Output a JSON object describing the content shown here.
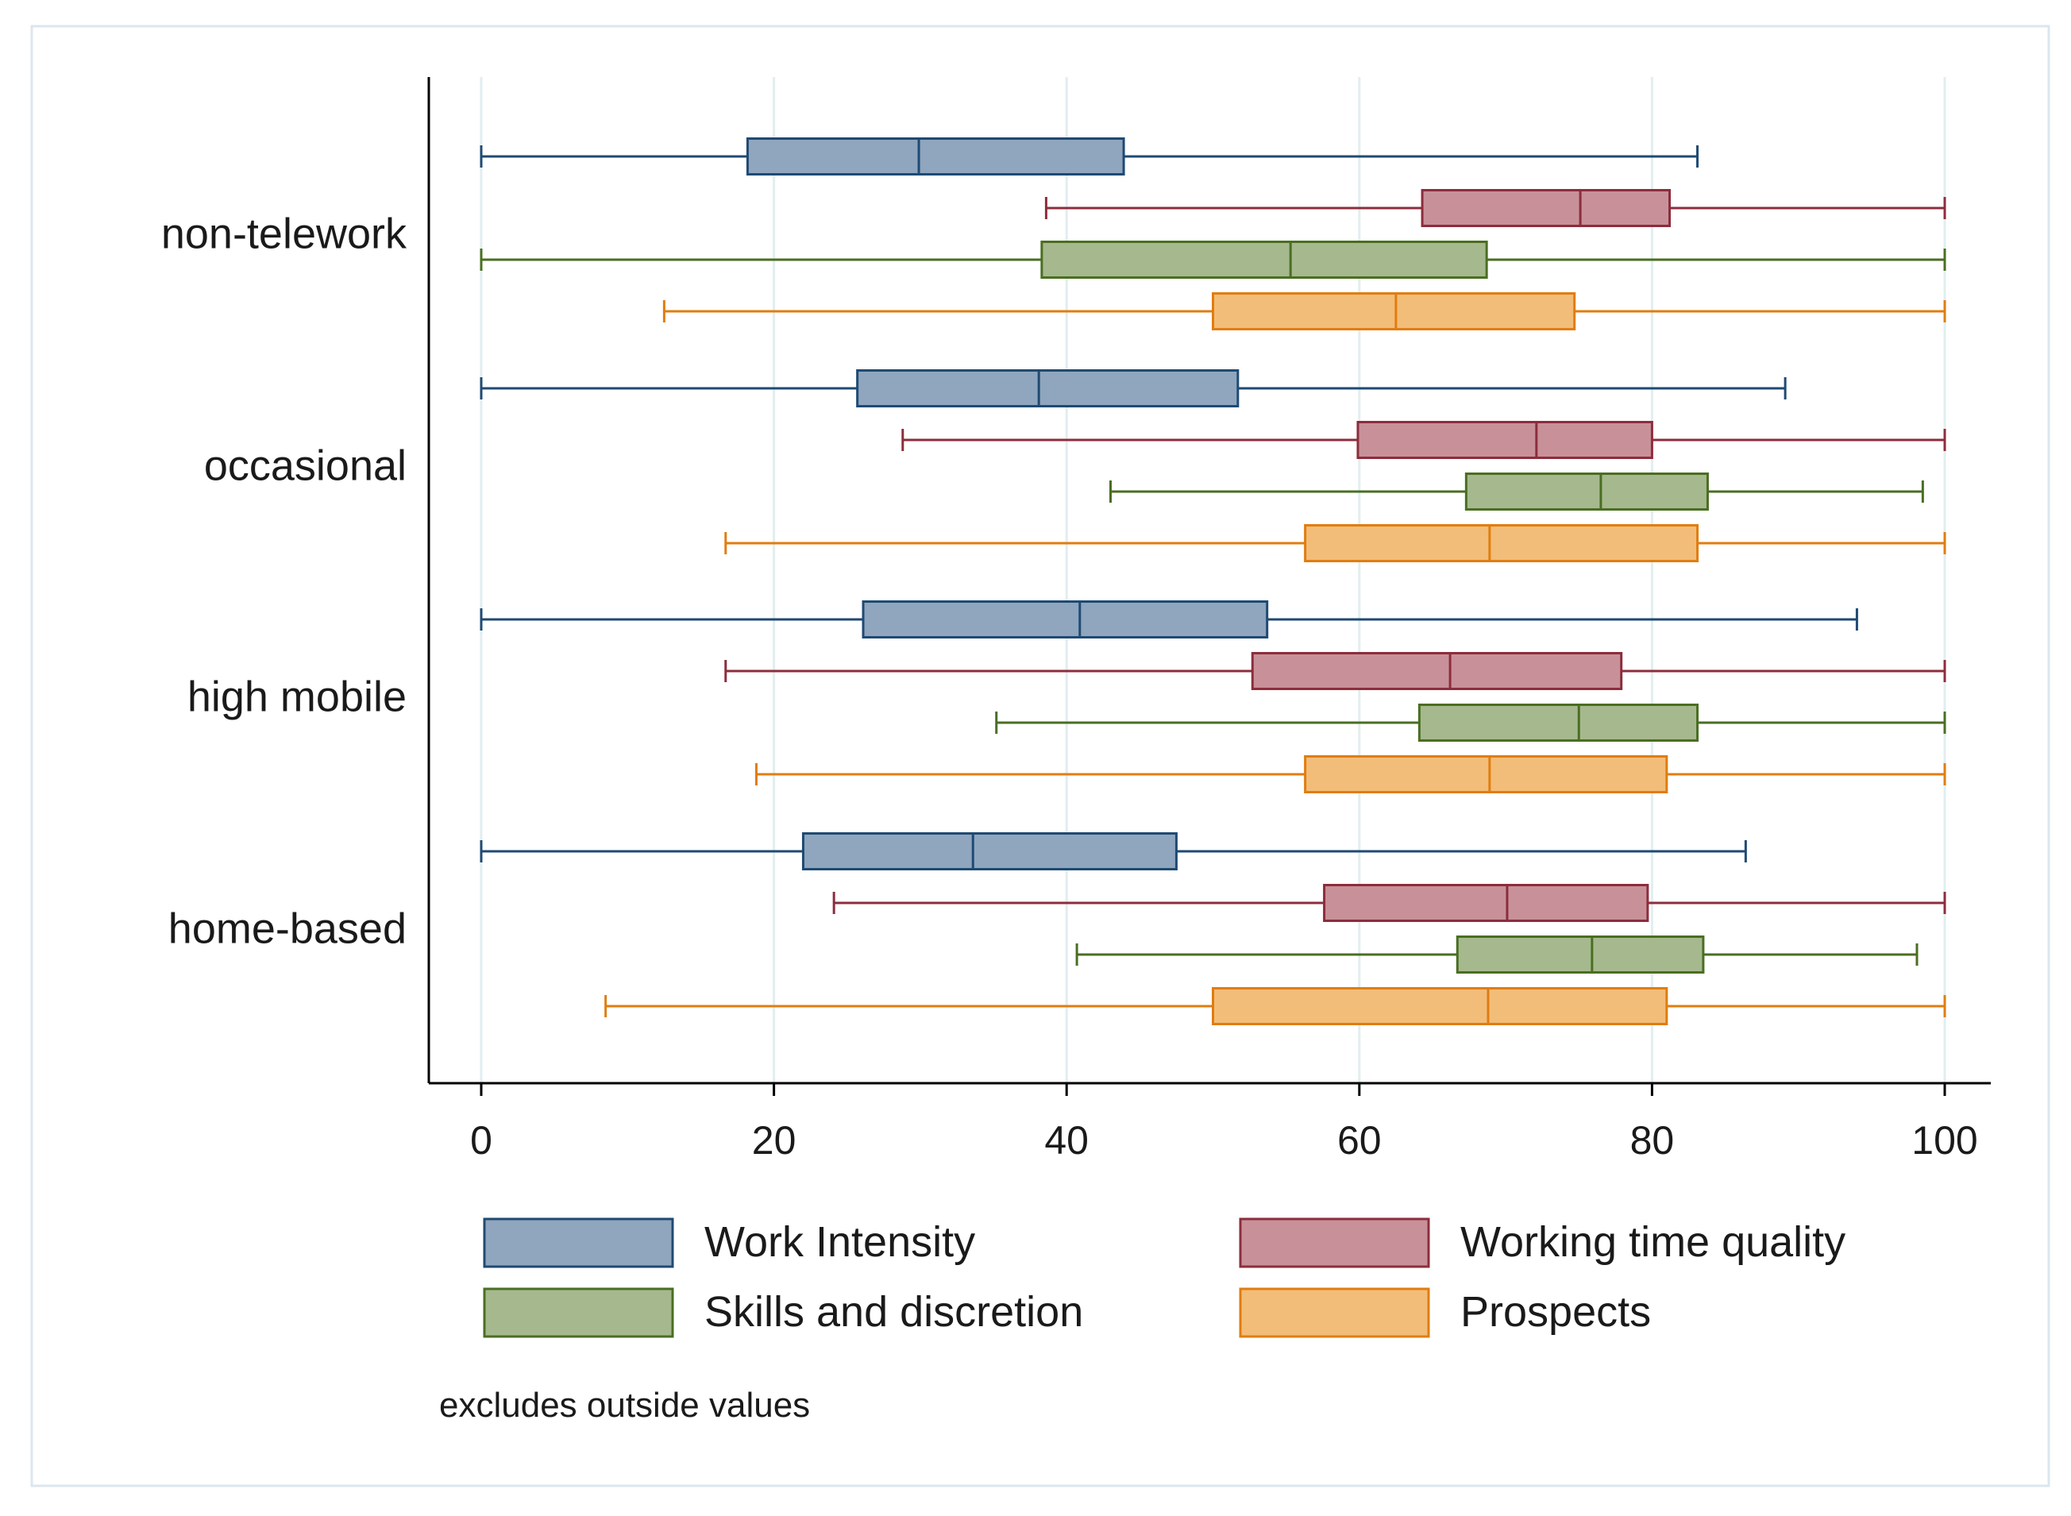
{
  "chart_data": {
    "type": "boxplot",
    "orientation": "horizontal",
    "groups": [
      "non-telework",
      "occasional",
      "high mobile",
      "home-based"
    ],
    "series": [
      {
        "name": "Work Intensity",
        "fill": "#8fa6be",
        "stroke": "#1f4a73"
      },
      {
        "name": "Working time quality",
        "fill": "#c89199",
        "stroke": "#8c2d3c"
      },
      {
        "name": "Skills and discretion",
        "fill": "#a6b98e",
        "stroke": "#4a6e22"
      },
      {
        "name": "Prospects",
        "fill": "#f2bd79",
        "stroke": "#e07d10"
      }
    ],
    "boxes": [
      [
        {
          "min": 0,
          "q1": 18.2,
          "median": 29.9,
          "q3": 43.9,
          "max": 83.1
        },
        {
          "min": 38.6,
          "q1": 64.3,
          "median": 75.1,
          "q3": 81.2,
          "max": 100
        },
        {
          "min": 0,
          "q1": 38.3,
          "median": 55.3,
          "q3": 68.7,
          "max": 100
        },
        {
          "min": 12.5,
          "q1": 50.0,
          "median": 62.5,
          "q3": 74.7,
          "max": 100
        }
      ],
      [
        {
          "min": 0,
          "q1": 25.7,
          "median": 38.1,
          "q3": 51.7,
          "max": 89.1
        },
        {
          "min": 28.8,
          "q1": 59.9,
          "median": 72.1,
          "q3": 80.0,
          "max": 100
        },
        {
          "min": 43.0,
          "q1": 67.3,
          "median": 76.5,
          "q3": 83.8,
          "max": 98.5
        },
        {
          "min": 16.7,
          "q1": 56.3,
          "median": 68.9,
          "q3": 83.1,
          "max": 100
        }
      ],
      [
        {
          "min": 0,
          "q1": 26.1,
          "median": 40.9,
          "q3": 53.7,
          "max": 94.0
        },
        {
          "min": 16.7,
          "q1": 52.7,
          "median": 66.2,
          "q3": 77.9,
          "max": 100
        },
        {
          "min": 35.2,
          "q1": 64.1,
          "median": 75.0,
          "q3": 83.1,
          "max": 100
        },
        {
          "min": 18.8,
          "q1": 56.3,
          "median": 68.9,
          "q3": 81.0,
          "max": 100
        }
      ],
      [
        {
          "min": 0,
          "q1": 22.0,
          "median": 33.6,
          "q3": 47.5,
          "max": 86.4
        },
        {
          "min": 24.1,
          "q1": 57.6,
          "median": 70.1,
          "q3": 79.7,
          "max": 100
        },
        {
          "min": 40.7,
          "q1": 66.7,
          "median": 75.9,
          "q3": 83.5,
          "max": 98.1
        },
        {
          "min": 8.5,
          "q1": 50.0,
          "median": 68.8,
          "q3": 81.0,
          "max": 100
        }
      ]
    ],
    "xlim": [
      0,
      100
    ],
    "xticks": [
      "0",
      "20",
      "40",
      "60",
      "80",
      "100"
    ],
    "grid": "vertical",
    "legend_position": "bottom",
    "note": "excludes outside values"
  }
}
